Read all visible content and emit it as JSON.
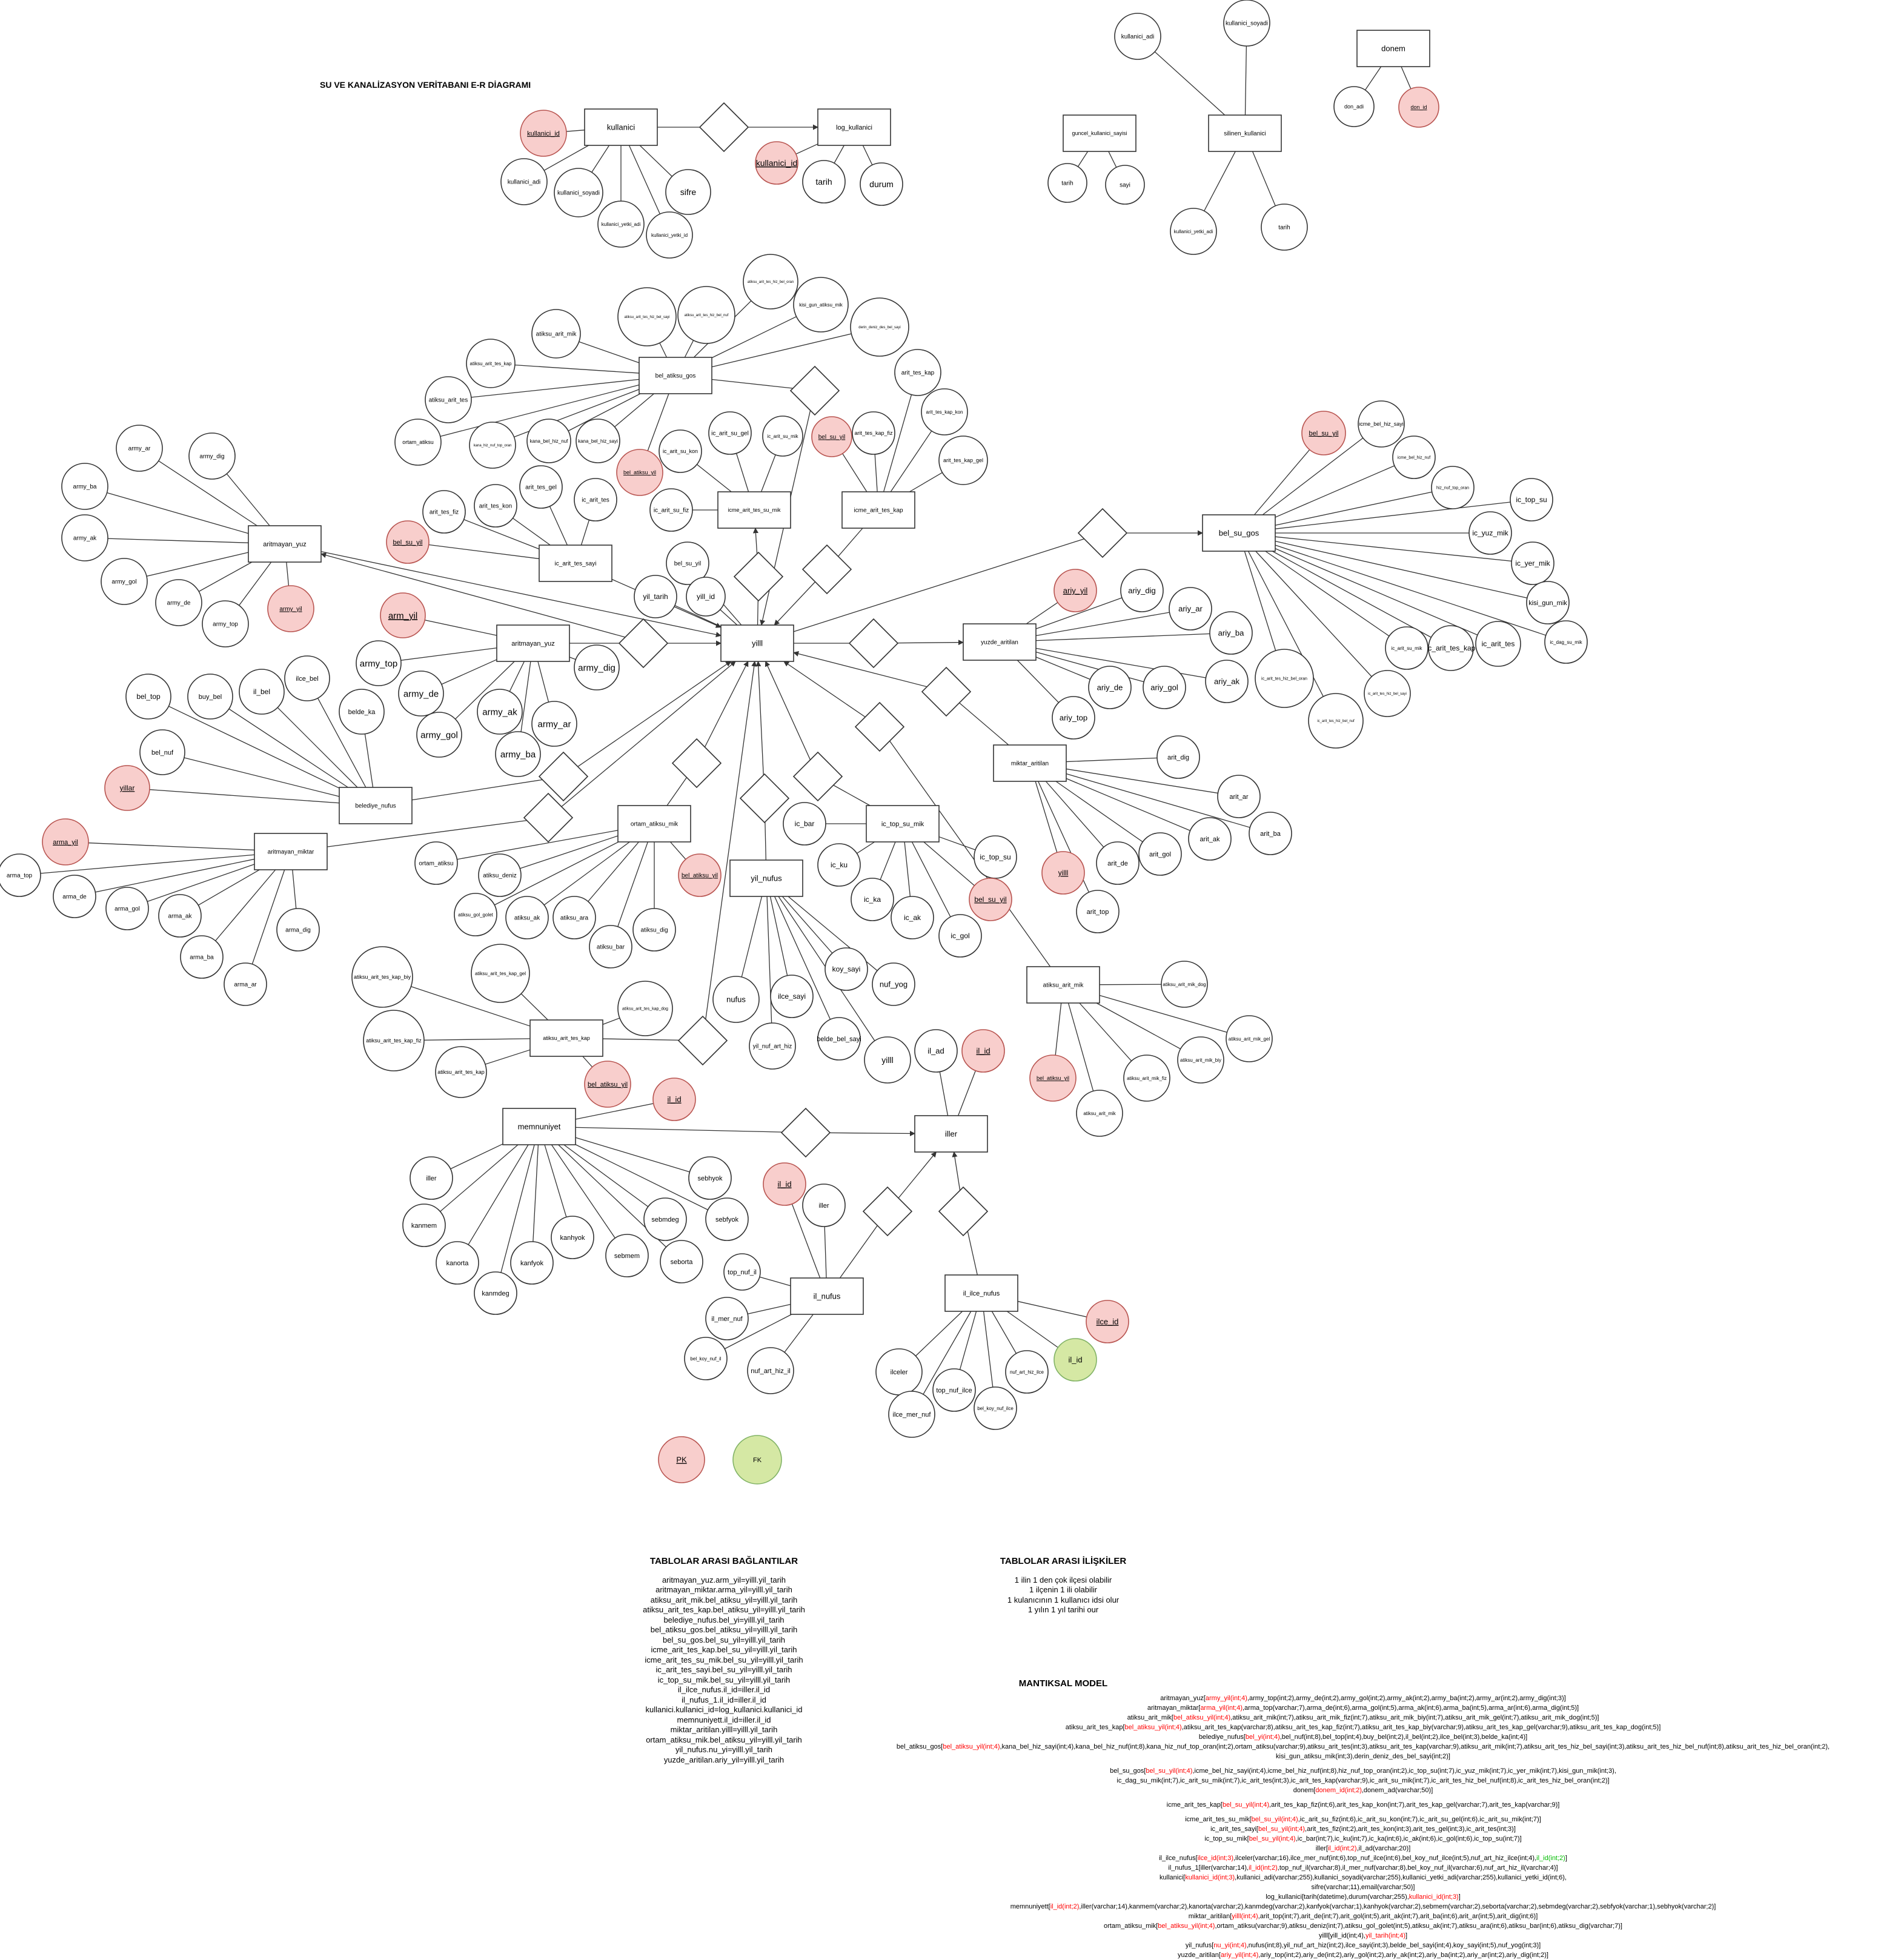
{
  "title": "SU VE KANALİZASYON VERİTABANI E-R DİAGRAMI",
  "entities": [
    {
      "id": "kullanici",
      "label": "kullanici"
    },
    {
      "id": "log_kullanici",
      "label": "log_kullanici"
    },
    {
      "id": "guncel",
      "label": "guncel_kullanici_sayisi"
    },
    {
      "id": "silinen",
      "label": "silinen_kullanici"
    },
    {
      "id": "donem",
      "label": "donem"
    },
    {
      "id": "bel_atiksu_gos",
      "label": "bel_atiksu_gos"
    },
    {
      "id": "arit_yuz1",
      "label": "aritmayan_yuz"
    },
    {
      "id": "ic_arit_tes",
      "label": "ic_arit_tes_sayi"
    },
    {
      "id": "icme_su_mik",
      "label": "icme_arit_tes_su_mik"
    },
    {
      "id": "icme_kap",
      "label": "icme_arit_tes_kap"
    },
    {
      "id": "bel_su_gos",
      "label": "bel_su_gos"
    },
    {
      "id": "arit_yuz2",
      "label": "aritmayan_yuz"
    },
    {
      "id": "yilll",
      "label": "yilll"
    },
    {
      "id": "yuzde",
      "label": "yuzde_aritilan"
    },
    {
      "id": "belediye",
      "label": "belediye_nufus"
    },
    {
      "id": "miktar",
      "label": "miktar_aritilan"
    },
    {
      "id": "arit_miktar",
      "label": "aritmayan_miktar"
    },
    {
      "id": "ortam",
      "label": "ortam_atiksu_mik"
    },
    {
      "id": "ic_top",
      "label": "ic_top_su_mik"
    },
    {
      "id": "yil_nufus",
      "label": "yil_nufus"
    },
    {
      "id": "atiksu_arit_mik",
      "label": "atiksu_arit_mik"
    },
    {
      "id": "atiksu_kap",
      "label": "atiksu_arit_tes_kap"
    },
    {
      "id": "memnuniyet",
      "label": "memnuniyet"
    },
    {
      "id": "iller",
      "label": "iller"
    },
    {
      "id": "il_nufus",
      "label": "il_nufus"
    },
    {
      "id": "il_ilce",
      "label": "il_ilce_nufus"
    }
  ],
  "attributes": {
    "kullanici_id": "kullanici_id",
    "kullanici_adi": "kullanici_adi",
    "kullanici_soyadi": "kullanici_soyadi",
    "kullanici_yetki_adi": "kullanici_yetki_adi",
    "kullanici_yetki_id": "kullanici_yetki_id",
    "sifre": "sifre",
    "tarih": "tarih",
    "durum": "durum",
    "sayi": "sayi",
    "don_adi": "don_adi",
    "don_id": "don_id",
    "atiksu_arit_mik": "atiksu_arit_mik",
    "atiksu_arit_tes_kap": "atiksu_arit_tes_kap",
    "atiksu_arit_tes": "atiksu_arit_tes",
    "ortam_atiksu": "ortam_atiksu",
    "kana_bel_hiz_sayi": "kana_bel_hiz_sayi",
    "kana_bel_hiz_nuf": "kana_bel_hiz_nuf",
    "kana_hiz_nuf_top_oran": "kana_hiz_nuf_top_oran",
    "bel_atiksu_yil": "bel_atiksu_yil",
    "atiksu_arit_tes_hiz_bel_sayi": "atiksu_arit_tes_hiz_bel_sayi",
    "atiksu_arit_tes_hiz_bel_nuf": "atiksu_arit_tes_hiz_bel_nuf",
    "atiksu_arit_tes_hiz_bel_oran": "atiksu_arit_tes_hiz_bel_oran",
    "kisi_gun_atiksu_mik": "kisi_gun_atiksu_mik",
    "derin_deniz_des_bel_sayi": "derin_deniz_des_bel_sayi",
    "army_ar": "army_ar",
    "army_dig": "army_dig",
    "army_ba": "army_ba",
    "army_ak": "army_ak",
    "army_gol": "army_gol",
    "army_de": "army_de",
    "army_top": "army_top",
    "army_yil": "army_yil",
    "arm_yil": "arm_yil",
    "arit_tes_fiz": "arit_tes_fiz",
    "arit_tes_kon": "arit_tes_kon",
    "arit_tes_gel": "arit_tes_gel",
    "ic_arit_tes": "ic_arit_tes",
    "bel_su_yil": "bel_su_yil",
    "ic_arit_su_kon": "ic_arit_su_kon",
    "ic_arit_su_gel": "ic_arit_su_gel",
    "ic_arit_su_mik": "ic_arit_su_mik",
    "ic_arit_su_fiz": "ic_arit_su_fiz",
    "arit_tes_kap": "arit_tes_kap",
    "arit_tes_kap_kon": "arit_tes_kap_kon",
    "arit_tes_kap_gel": "arit_tes_kap_gel",
    "arit_tes_kap_fiz": "arit_tes_kap_fiz",
    "icme_bel_hiz_sayi": "icme_bel_hiz_sayi",
    "icme_bel_hiz_nuf": "icme_bel_hiz_nuf",
    "hiz_nuf_top_oran": "hiz_nuf_top_oran",
    "ic_top_su": "ic_top_su",
    "ic_yuz_mik": "ic_yuz_mik",
    "ic_yer_mik": "ic_yer_mik",
    "kisi_gun_mik": "kisi_gun_mik",
    "ic_dag_su_mik": "ic_dag_su_mik",
    "ic_arit_su_mik2": "ic_arit_su_mik",
    "ic_arit_tes_kap": "ic_arit_tes_kap",
    "ic_arit_tes_hiz_bel_oran": "ic_arit_tes_hiz_bel_oran",
    "ic_arit_tes_hiz_bel_nuf": "ic_arit_tes_hiz_bel_nuf",
    "ic_arit_tes_hiz_bel_sayi": "ic_arit_tes_hiz_bel_sayi",
    "yil_tarih": "yil_tarih",
    "yill_id": "yill_id",
    "ariy_yil": "ariy_yil",
    "ariy_dig": "ariy_dig",
    "ariy_ar": "ariy_ar",
    "ariy_ba": "ariy_ba",
    "ariy_ak": "ariy_ak",
    "ariy_gol": "ariy_gol",
    "ariy_de": "ariy_de",
    "ariy_top": "ariy_top",
    "bel_top": "bel_top",
    "buy_bel": "buy_bel",
    "il_bel": "il_bel",
    "ilce_bel": "ilce_bel",
    "belde_ka": "belde_ka",
    "bel_nuf": "bel_nuf",
    "yillar": "yillar",
    "arit_dig": "arit_dig",
    "arit_ar": "arit_ar",
    "arit_ba": "arit_ba",
    "arit_ak": "arit_ak",
    "arit_gol": "arit_gol",
    "arit_de": "arit_de",
    "arit_top": "arit_top",
    "yilll_attr": "yilll",
    "arma_yil": "arma_yil",
    "arma_top": "arma_top",
    "arma_de": "arma_de",
    "arma_gol": "arma_gol",
    "arma_ak": "arma_ak",
    "arma_ba": "arma_ba",
    "arma_ar": "arma_ar",
    "arma_dig": "arma_dig",
    "atiksu_deniz": "atiksu_deniz",
    "atiksu_gol_golet": "atiksu_gol_golet",
    "atiksu_ak": "atiksu_ak",
    "atiksu_ara": "atiksu_ara",
    "atiksu_bar": "atiksu_bar",
    "atiksu_dig": "atiksu_dig",
    "ic_bar": "ic_bar",
    "ic_ku": "ic_ku",
    "ic_ka": "ic_ka",
    "ic_ak": "ic_ak",
    "ic_gol": "ic_gol",
    "ic_top_su2": "ic_top_su",
    "nufus": "nufus",
    "ilce_sayi": "ilce_sayi",
    "yil_nuf_art_hiz": "yil_nuf_art_hiz",
    "belde_bel_sayi": "belde_bel_sayi",
    "koy_sayi": "koy_sayi",
    "nuf_yog": "nuf_yog",
    "atiksu_arit_mik_dog": "atiksu_arit_mik_dog",
    "atiksu_arit_mik_gel": "atiksu_arit_mik_gel",
    "atiksu_arit_mik_biy": "atiksu_arit_mik_biy",
    "atiksu_arit_mik_fiz": "atiksu_arit_mik_fiz",
    "atiksu_arit_mik_kim": "atiksu_arit_mik",
    "atiksu_arit_tes_kap_biy": "atiksu_arit_tes_kap_biy",
    "atiksu_arit_tes_kap_gel": "atiksu_arit_tes_kap_gel",
    "atiksu_arit_tes_kap_dog": "atiksu_arit_tes_kap_dog",
    "atiksu_arit_tes_kap_fiz": "atiksu_arit_tes_kap_fiz",
    "atiksu_arit_tes_kap_kim": "atiksu_arit_tes_kap",
    "il_id": "il_id",
    "il_ad": "il_ad",
    "iller": "iller",
    "kanmem": "kanmem",
    "kanorta": "kanorta",
    "kanmdeg": "kanmdeg",
    "kanfyok": "kanfyok",
    "kanhyok": "kanhyok",
    "sebmem": "sebmem",
    "sebmdeg": "sebmdeg",
    "seborta": "seborta",
    "sebfyok": "sebfyok",
    "sebhyok": "sebhyok",
    "top_nuf_il": "top_nuf_il",
    "il_mer_nuf": "il_mer_nuf",
    "bel_koy_nuf_il": "bel_koy_nuf_il",
    "nuf_art_hiz_il": "nuf_art_hiz_il",
    "ilceler": "ilceler",
    "ilce_mer_nuf": "ilce_mer_nuf",
    "top_nuf_ilce": "top_nuf_ilce",
    "bel_koy_nuf_ilce": "bel_koy_nuf_ilce",
    "nuf_art_hiz_ilce": "nuf_art_hiz_ilce",
    "ilce_id": "ilce_id",
    "pk": "PK",
    "fk": "FK"
  },
  "sections": {
    "baglantilar_title": "TABLOLAR ARASI BAĞLANTILAR",
    "baglantilar": [
      "aritmayan_yuz.arm_yil=yilll.yil_tarih",
      "aritmayan_miktar.arma_yil=yilll.yil_tarih",
      "atiksu_arit_mik.bel_atiksu_yil=yilll.yil_tarih",
      "atiksu_arit_tes_kap.bel_atiksu_yil=yilll.yil_tarih",
      "belediye_nufus.bel_yi=yilll.yil_tarih",
      "bel_atiksu_gos.bel_atiksu_yil=yilll.yil_tarih",
      "bel_su_gos.bel_su_yil=yilll.yil_tarih",
      "icme_arit_tes_kap.bel_su_yil=yilll.yil_tarih",
      "icme_arit_tes_su_mik.bel_su_yil=yilll.yil_tarih",
      "ic_arit_tes_sayi.bel_su_yil=yilll.yil_tarih",
      "ic_top_su_mik.bel_su_yil=yilll.yil_tarih",
      "il_ilce_nufus.il_id=iller.il_id",
      "il_nufus_1.il_id=iller.il_id",
      "kullanici.kullanici_id=log_kullanici.kullanici_id",
      "memnuniyett.il_id=iller.il_id",
      "miktar_aritilan.yilll=yilll.yil_tarih",
      "ortam_atiksu_mik.bel_atiksu_yil=yilll.yil_tarih",
      "yil_nufus.nu_yi=yilll.yil_tarih",
      "yuzde_aritilan.ariy_yil=yilll.yil_tarih"
    ],
    "iliskiler_title": "TABLOLAR ARASI İLİŞKİLER",
    "iliskiler": [
      "1 ilin 1 den çok ilçesi olabilir",
      "1 ilçenin 1 ili olabilir",
      "1 kulanıcının 1 kullanıcı idsi olur",
      "1 yılın 1 yıl tarihi our"
    ],
    "mantiksal_title": "MANTIKSAL MODEL",
    "mantiksal": [
      [
        [
          "aritmayan_yuz[",
          ""
        ],
        [
          "army_yil(int;4)",
          "red"
        ],
        [
          ",army_top(int;2),army_de(int;2),army_gol(int;2),army_ak(int;2),army_ba(int;2),army_ar(int;2),army_dig(int;3)]",
          ""
        ]
      ],
      [
        [
          "aritmayan_miktar[",
          ""
        ],
        [
          "arma_yil(int;4)",
          "red"
        ],
        [
          ",arma_top(varchar;7),arma_de(int;6),arma_gol(int;5),arma_ak(int;6),arma_ba(int;5),arma_ar(int;6),arma_dig(int;5)]",
          ""
        ]
      ],
      [
        [
          "atiksu_arit_mik[",
          ""
        ],
        [
          "bel_atiksu_yil(int;4)",
          "red"
        ],
        [
          ",atiksu_arit_mik(int;7),atiksu_arit_mik_fiz(int;7),atiksu_arit_mik_biy(int;7),atiksu_arit_mik_gel(int;7),atiksu_arit_mik_dog(int;5)]",
          ""
        ]
      ],
      [
        [
          "atiksu_arit_tes_kap[",
          ""
        ],
        [
          "bel_atiksu_yil(int;4)",
          "red"
        ],
        [
          ",atiksu_arit_tes_kap(varchar;8),atiksu_arit_tes_kap_fiz(int;7),atiksu_arit_tes_kap_biy(varchar;9),atiksu_arit_tes_kap_gel(varchar;9),atiksu_arit_tes_kap_dog(int;5)]",
          ""
        ]
      ],
      [
        [
          "belediye_nufus[",
          ""
        ],
        [
          "bel_yi(int;4)",
          "red"
        ],
        [
          ",bel_nuf(int;8),bel_top(int;4),buy_bel(int;2),il_bel(int;2),ilce_bel(int;3),belde_ka(int;4)]",
          ""
        ]
      ],
      [
        [
          "bel_atiksu_gos[",
          ""
        ],
        [
          "bel_atiksu_yil(int;4)",
          "red"
        ],
        [
          ",kana_bel_hiz_sayi(int;4),kana_bel_hiz_nuf(int;8),kana_hiz_nuf_top_oran(int;2),ortam_atiksu(varchar;9),atiksu_arit_tes(int;3),atiksu_arit_tes_kap(varchar;9),atiksu_arit_mik(int;7),atiksu_arit_tes_hiz_bel_sayi(int;3),atiksu_arit_tes_hiz_bel_nuf(int;8),atiksu_arit_tes_hiz_bel_oran(int;2),",
          ""
        ]
      ],
      [
        [
          "kisi_gun_atiksu_mik(int;3),derin_deniz_des_bel_sayi(int;2)]",
          ""
        ]
      ],
      [
        [
          "",
          ""
        ]
      ],
      [
        [
          "bel_su_gos[",
          ""
        ],
        [
          "bel_su_yil(int;4)",
          "red"
        ],
        [
          ",icme_bel_hiz_sayi(int;4),icme_bel_hiz_nuf(int;8),hiz_nuf_top_oran(int;2),ic_top_su(int;7),ic_yuz_mik(int;7),ic_yer_mik(int;7),kisi_gun_mik(int;3),",
          ""
        ]
      ],
      [
        [
          "ic_dag_su_mik(int;7),ic_arit_su_mik(int;7),ic_arit_tes(int;3),ic_arit_tes_kap(varchar;9),ic_arit_su_mik(int;7),ic_arit_tes_hiz_bel_nuf(int;8),ic_arit_tes_hiz_bel_oran(int;2)]",
          ""
        ]
      ],
      [
        [
          "donem[",
          ""
        ],
        [
          "donem_id(int;2)",
          "red"
        ],
        [
          ",donem_ad(varchar;50)]",
          ""
        ]
      ],
      [
        [
          "",
          ""
        ]
      ],
      [
        [
          "icme_arit_tes_kap[",
          ""
        ],
        [
          "bel_su_yil(int;4)",
          "red"
        ],
        [
          ",arit_tes_kap_fiz(int;6),arit_tes_kap_kon(int;7),arit_tes_kap_gel(varchar;7),arit_tes_kap(varchar;9)]",
          ""
        ]
      ],
      [
        [
          "",
          ""
        ]
      ],
      [
        [
          "icme_arit_tes_su_mik[",
          ""
        ],
        [
          "bel_su_yil(int;4)",
          "red"
        ],
        [
          ",ic_arit_su_fiz(int;6),ic_arit_su_kon(int;7),ic_arit_su_gel(int;6),ic_arit_su_mik(int;7)]",
          ""
        ]
      ],
      [
        [
          "ic_arit_tes_sayi[",
          ""
        ],
        [
          "bel_su_yil(int;4)",
          "red"
        ],
        [
          ",arit_tes_fiz(int;2),arit_tes_kon(int;3),arit_tes_gel(int;3),ic_arit_tes(int;3)]",
          ""
        ]
      ],
      [
        [
          "ic_top_su_mik[",
          ""
        ],
        [
          "bel_su_yil(int;4)",
          "red"
        ],
        [
          ",ic_bar(int;7),ic_ku(int;7),ic_ka(int;6),ic_ak(int;6),ic_gol(int;6),ic_top_su(int;7)]",
          ""
        ]
      ],
      [
        [
          "iller[",
          ""
        ],
        [
          "il_id(int;2)",
          "red"
        ],
        [
          ",il_ad(varchar;20)]",
          ""
        ]
      ],
      [
        [
          "il_ilce_nufus[",
          ""
        ],
        [
          "ilce_id(int;3)",
          "red"
        ],
        [
          ",ilceler(varchar;16),ilce_mer_nuf(int;6),top_nuf_ilce(int;6),bel_koy_nuf_ilce(int;5),nuf_art_hiz_ilce(int;4),",
          ""
        ],
        [
          "il_id(int;2)",
          "green"
        ],
        [
          "]",
          ""
        ]
      ],
      [
        [
          "il_nufus_1[iller(varchar;14),",
          ""
        ],
        [
          "il_id(int;2)",
          "red"
        ],
        [
          ",top_nuf_il(varchar;8),il_mer_nuf(varchar;8),bel_koy_nuf_il(varchar;6),nuf_art_hiz_il(varchar;4)]",
          ""
        ]
      ],
      [
        [
          "kullanici[",
          ""
        ],
        [
          "kullanici_id(int;3)",
          "red"
        ],
        [
          ",kullanici_adi(varchar;255),kullanici_soyadi(varchar;255),kullanici_yetki_adi(varchar;255),kullanici_yetki_id(int;6),",
          ""
        ]
      ],
      [
        [
          "sifre(varchar;11),email(varchar;50)]",
          ""
        ]
      ],
      [
        [
          "log_kullanici[tarih(datetime),durum(varchar;255),",
          ""
        ],
        [
          "kullanici_id(int;3)",
          "red"
        ],
        [
          "]",
          ""
        ]
      ],
      [
        [
          "memnuniyett[",
          ""
        ],
        [
          "il_id(int;2)",
          "red"
        ],
        [
          ",iller(varchar;14),kanmem(varchar;2),kanorta(varchar;2),kanmdeg(varchar;2),kanfyok(varchar;1),kanhyok(varchar;2),sebmem(varchar;2),seborta(varchar;2),sebmdeg(varchar;2),sebfyok(varchar;1),sebhyok(varchar;2)]",
          ""
        ]
      ],
      [
        [
          "miktar_aritilan[",
          ""
        ],
        [
          "yilll(int;4)",
          "red"
        ],
        [
          ",arit_top(int;7),arit_de(int;7),arit_gol(int;5),arit_ak(int;7),arit_ba(int;6),arit_ar(int;5),arit_dig(int;6)]",
          ""
        ]
      ],
      [
        [
          "ortam_atiksu_mik[",
          ""
        ],
        [
          "bel_atiksu_yil(int;4)",
          "red"
        ],
        [
          ",ortam_atiksu(varchar;9),atiksu_deniz(int;7),atiksu_gol_golet(int;5),atiksu_ak(int;7),atiksu_ara(int;6),atiksu_bar(int;6),atiksu_dig(varchar;7)]",
          ""
        ]
      ],
      [
        [
          "yilll[yill_id(int;4),",
          ""
        ],
        [
          "yil_tarih(int;4)",
          "red"
        ],
        [
          "]",
          ""
        ]
      ],
      [
        [
          "yil_nufus[",
          ""
        ],
        [
          "nu_yi(int;4)",
          "red"
        ],
        [
          ",nufus(int;8),yil_nuf_art_hiz(int;2),ilce_sayi(int;3),belde_bel_sayi(int;4),koy_sayi(int;5),nuf_yog(int;3)]",
          ""
        ]
      ],
      [
        [
          "yuzde_aritilan[",
          ""
        ],
        [
          "ariy_yil(int;4)",
          "red"
        ],
        [
          ",ariy_top(int;2),ariy_de(int;2),ariy_gol(int;2),ariy_ak(int;2),ariy_ba(int;2),ariy_ar(int;2),ariy_dig(int;2)]",
          ""
        ]
      ]
    ]
  },
  "colors": {
    "pk_fill": "#f8cecc",
    "pk_stroke": "#b85450",
    "fk_fill": "#d5e8a4",
    "fk_stroke": "#82b366",
    "red": "#ff0000",
    "green": "#00bb00"
  }
}
